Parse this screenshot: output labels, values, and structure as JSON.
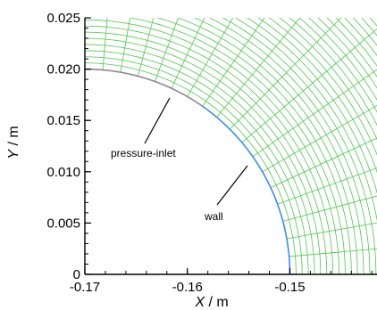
{
  "figure": {
    "xlabel_var": "X",
    "xlabel_unit": " / m",
    "ylabel_var": "Y",
    "ylabel_unit": " / m",
    "annotations": {
      "inlet": "pressure-inlet",
      "wall": "wall"
    },
    "colors": {
      "mesh": "#4fc64f",
      "wall": "#3a8ee6",
      "inlet": "#8a8a8a",
      "axes": "#000000",
      "background": "#ffffff"
    }
  },
  "chart_data": {
    "type": "mesh",
    "title": "",
    "xlabel": "X / m",
    "ylabel": "Y / m",
    "xlim": [
      -0.17,
      -0.1415
    ],
    "ylim": [
      0,
      0.025
    ],
    "x_ticks": [
      -0.17,
      -0.16,
      -0.15
    ],
    "x_tick_labels": [
      "-0.17",
      "-0.16",
      "-0.15"
    ],
    "y_ticks": [
      0,
      0.005,
      0.01,
      0.015,
      0.02,
      0.025
    ],
    "y_tick_labels": [
      "0",
      "0.005",
      "0.010",
      "0.015",
      "0.020",
      "0.025"
    ],
    "mesh": {
      "center": [
        -0.17,
        0
      ],
      "inner_radius": 0.02,
      "n_radial_lines": 18,
      "ring_spacing": 0.0006
    },
    "boundaries": [
      {
        "name": "pressure-inlet",
        "type": "arc",
        "radius": 0.02,
        "angle_deg": [
          55,
          90
        ]
      },
      {
        "name": "wall",
        "type": "arc",
        "radius": 0.02,
        "angle_deg": [
          0,
          55
        ]
      }
    ]
  }
}
